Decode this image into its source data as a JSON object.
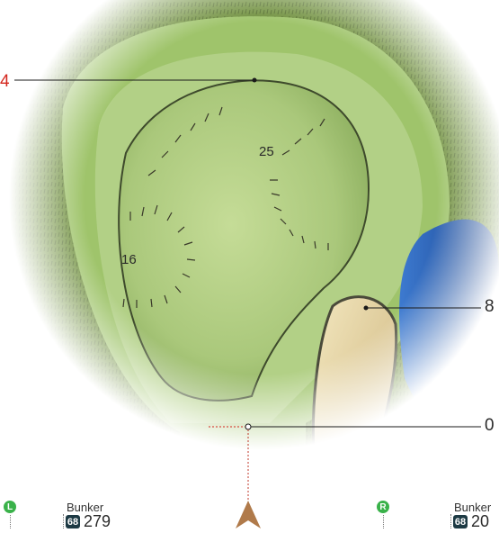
{
  "distances": {
    "front_left": "4",
    "right_mid": "8",
    "bottom_right": "0"
  },
  "pin_labels": {
    "upper": "25",
    "left": "16"
  },
  "markers": {
    "left": {
      "letter": "L",
      "title": "Bunker",
      "badge": "68",
      "value": "279"
    },
    "right": {
      "letter": "R",
      "title": "Bunker",
      "badge": "68",
      "value": "20"
    }
  },
  "colors": {
    "fairway": "#9fc46b",
    "green": "#a8c97a",
    "rough": "#5f7f35",
    "bunker": "#e6d7a6",
    "water": "#1f58a8",
    "distance_red": "#d4281f",
    "marker_green": "#3ab24a",
    "badge_bg": "#1d3a44"
  }
}
